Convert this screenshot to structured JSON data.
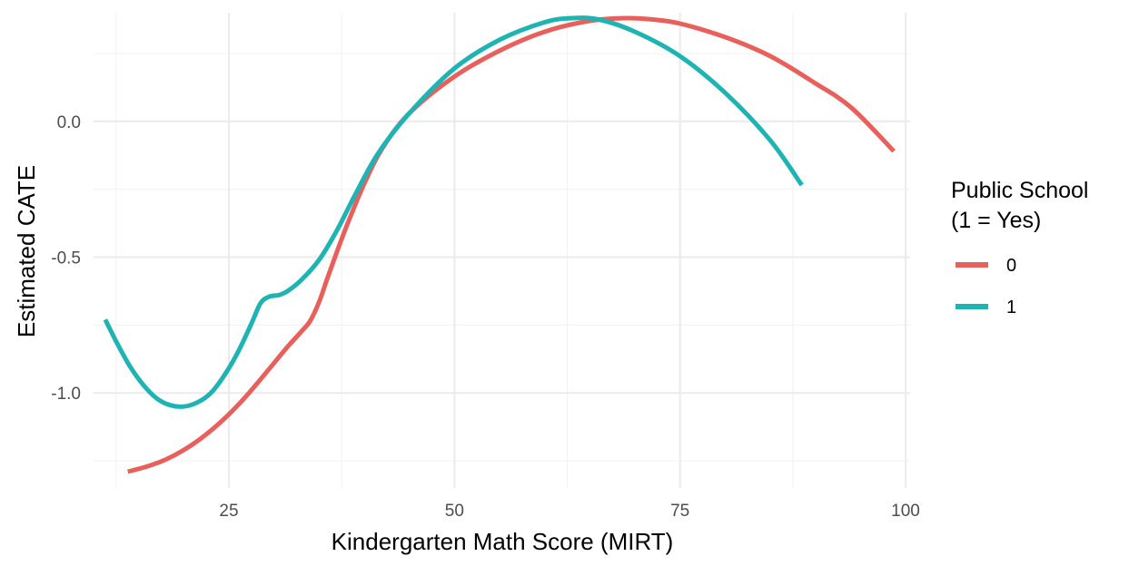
{
  "chart_data": {
    "type": "line",
    "title": "",
    "xlabel": "Kindergarten Math Score (MIRT)",
    "ylabel": "Estimated CATE",
    "xlim": [
      10,
      100.5
    ],
    "ylim": [
      -1.35,
      0.4
    ],
    "x_ticks": [
      25,
      50,
      75,
      100
    ],
    "x_tick_labels": [
      "25",
      "50",
      "75",
      "100"
    ],
    "y_ticks": [
      -1.0,
      -0.5,
      0.0
    ],
    "y_tick_labels": [
      "-1.0",
      "-0.5",
      "0.0"
    ],
    "grid": true,
    "legend": {
      "title_lines": [
        "Public School",
        "(1 = Yes)"
      ],
      "position": "right"
    },
    "series": [
      {
        "name": "0",
        "color": "#e8605c",
        "points": [
          [
            13.8,
            -1.29
          ],
          [
            16,
            -1.27
          ],
          [
            18,
            -1.245
          ],
          [
            20,
            -1.21
          ],
          [
            22,
            -1.165
          ],
          [
            24,
            -1.11
          ],
          [
            26,
            -1.045
          ],
          [
            28,
            -0.97
          ],
          [
            30,
            -0.89
          ],
          [
            31.5,
            -0.83
          ],
          [
            33,
            -0.775
          ],
          [
            34,
            -0.735
          ],
          [
            35,
            -0.665
          ],
          [
            36,
            -0.57
          ],
          [
            38,
            -0.39
          ],
          [
            40,
            -0.23
          ],
          [
            42,
            -0.1
          ],
          [
            45,
            0.03
          ],
          [
            50,
            0.165
          ],
          [
            55,
            0.26
          ],
          [
            60,
            0.33
          ],
          [
            65,
            0.37
          ],
          [
            69,
            0.38
          ],
          [
            72,
            0.375
          ],
          [
            75,
            0.36
          ],
          [
            80,
            0.31
          ],
          [
            85,
            0.24
          ],
          [
            90,
            0.14
          ],
          [
            94,
            0.05
          ],
          [
            98.7,
            -0.11
          ]
        ]
      },
      {
        "name": "1",
        "color": "#1fb3b3",
        "points": [
          [
            11.3,
            -0.73
          ],
          [
            12.5,
            -0.81
          ],
          [
            14,
            -0.9
          ],
          [
            15.5,
            -0.97
          ],
          [
            17,
            -1.02
          ],
          [
            18.5,
            -1.045
          ],
          [
            20,
            -1.05
          ],
          [
            21.5,
            -1.035
          ],
          [
            23,
            -1.0
          ],
          [
            24.5,
            -0.935
          ],
          [
            26,
            -0.85
          ],
          [
            27.5,
            -0.745
          ],
          [
            28.5,
            -0.67
          ],
          [
            29.5,
            -0.645
          ],
          [
            30.5,
            -0.64
          ],
          [
            31.5,
            -0.625
          ],
          [
            33,
            -0.585
          ],
          [
            35,
            -0.51
          ],
          [
            37,
            -0.4
          ],
          [
            39,
            -0.27
          ],
          [
            41.5,
            -0.12
          ],
          [
            45,
            0.03
          ],
          [
            50,
            0.195
          ],
          [
            55,
            0.3
          ],
          [
            60,
            0.365
          ],
          [
            63,
            0.38
          ],
          [
            66,
            0.375
          ],
          [
            70,
            0.33
          ],
          [
            75,
            0.24
          ],
          [
            80,
            0.105
          ],
          [
            85,
            -0.07
          ],
          [
            88.5,
            -0.235
          ]
        ]
      }
    ]
  }
}
